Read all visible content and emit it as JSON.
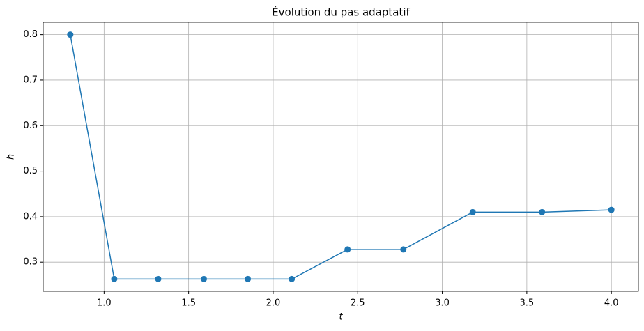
{
  "chart_data": {
    "type": "line",
    "title": "Évolution du pas adaptatif",
    "x_label": "t",
    "y_label": "h",
    "x": [
      0.8,
      1.06,
      1.32,
      1.59,
      1.85,
      2.11,
      2.44,
      2.77,
      3.18,
      3.59,
      4.0
    ],
    "series": [
      {
        "name": "h",
        "color": "#1f77b4",
        "values": [
          0.8,
          0.263,
          0.263,
          0.263,
          0.263,
          0.263,
          0.328,
          0.328,
          0.41,
          0.41,
          0.415
        ]
      }
    ],
    "xlim": [
      0.64,
      4.16
    ],
    "xticks": [
      {
        "value": 1,
        "label": "1.0"
      },
      1.5,
      {
        "value": 2,
        "label": "2.0"
      },
      2.5,
      {
        "value": 3,
        "label": "3.0"
      },
      3.5,
      {
        "value": 4,
        "label": "4.0"
      }
    ],
    "ylim": [
      0.236,
      0.827
    ],
    "yticks": [
      0.3,
      0.4,
      0.5,
      0.6,
      0.7,
      0.8
    ],
    "grid": true,
    "markers": true
  }
}
